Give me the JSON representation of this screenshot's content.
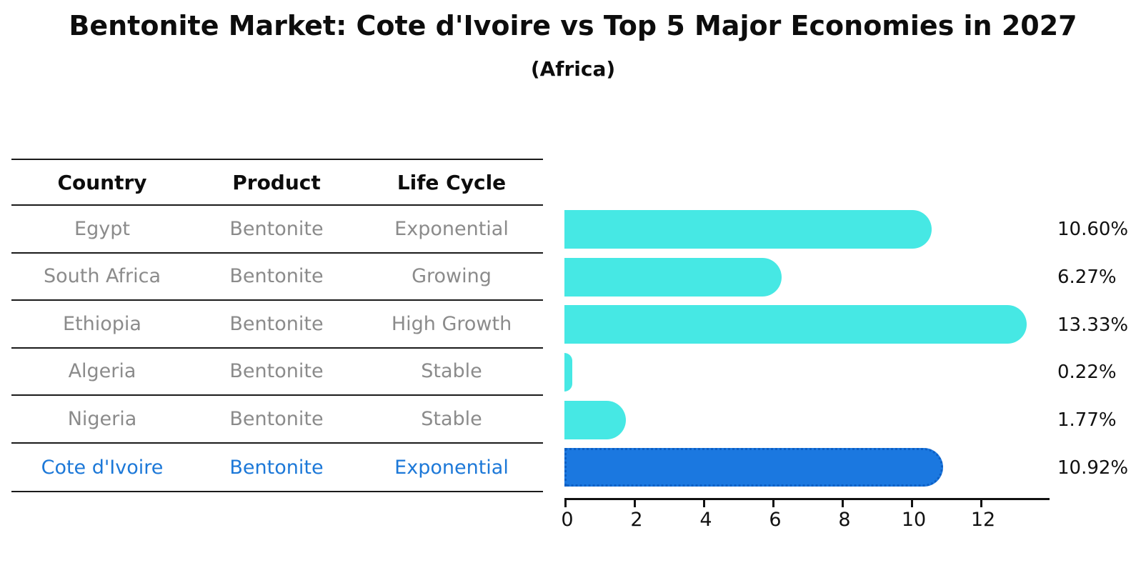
{
  "title": "Bentonite Market: Cote d'Ivoire vs Top 5 Major Economies in 2027",
  "subtitle": "(Africa)",
  "table": {
    "headers": {
      "country": "Country",
      "product": "Product",
      "life_cycle": "Life Cycle"
    },
    "rows": [
      {
        "country": "Egypt",
        "product": "Bentonite",
        "life_cycle": "Exponential",
        "highlighted": false
      },
      {
        "country": "South Africa",
        "product": "Bentonite",
        "life_cycle": "Growing",
        "highlighted": false
      },
      {
        "country": "Ethiopia",
        "product": "Bentonite",
        "life_cycle": "High Growth",
        "highlighted": false
      },
      {
        "country": "Algeria",
        "product": "Bentonite",
        "life_cycle": "Stable",
        "highlighted": false
      },
      {
        "country": "Nigeria",
        "product": "Bentonite",
        "life_cycle": "Stable",
        "highlighted": false
      },
      {
        "country": "Cote d'Ivoire",
        "product": "Bentonite",
        "life_cycle": "Exponential",
        "highlighted": true
      }
    ]
  },
  "chart_data": {
    "type": "bar",
    "orientation": "horizontal",
    "categories": [
      "Egypt",
      "South Africa",
      "Ethiopia",
      "Algeria",
      "Nigeria",
      "Cote d'Ivoire"
    ],
    "values": [
      10.6,
      6.27,
      13.33,
      0.22,
      1.77,
      10.92
    ],
    "value_labels": [
      "10.60%",
      "6.27%",
      "13.33%",
      "0.22%",
      "1.77%",
      "10.92%"
    ],
    "xticks": [
      0,
      2,
      4,
      6,
      8,
      10,
      12
    ],
    "xlim": [
      0,
      14
    ],
    "grid": false,
    "legend": false,
    "bar_color": "#46e8e4",
    "highlight_bar_color": "#1b78e0",
    "highlight_index": 5,
    "title": "Bentonite Market: Cote d'Ivoire vs Top 5 Major Economies in 2027",
    "subtitle": "(Africa)",
    "xlabel": "",
    "ylabel": ""
  },
  "colors": {
    "table_text": "#8b8b8b",
    "header_text": "#0d0d0d",
    "highlight_text": "#1c78d8",
    "axis": "#111111"
  }
}
